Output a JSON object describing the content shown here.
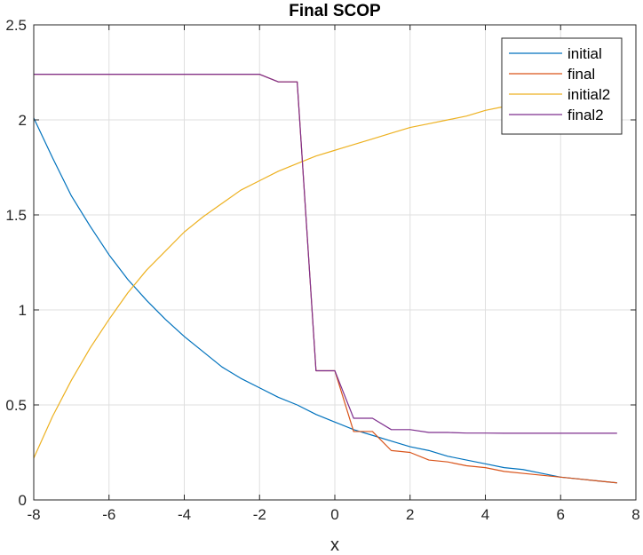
{
  "chart_data": {
    "type": "line",
    "title": "Final SCOP",
    "xlabel": "x",
    "ylabel": "",
    "xlim": [
      -8,
      8
    ],
    "ylim": [
      0,
      2.5
    ],
    "xticks": [
      "-8",
      "-6",
      "-4",
      "-2",
      "0",
      "2",
      "4",
      "6",
      "8"
    ],
    "yticks": [
      "0",
      "0.5",
      "1",
      "1.5",
      "2",
      "2.5"
    ],
    "grid": true,
    "legend_position": "top-right",
    "series": [
      {
        "name": "initial",
        "color": "#0072BD",
        "x": [
          -8,
          -7.5,
          -7,
          -6.5,
          -6,
          -5.5,
          -5,
          -4.5,
          -4,
          -3.5,
          -3,
          -2.5,
          -2,
          -1.5,
          -1,
          -0.5,
          0,
          0.5,
          1,
          1.5,
          2,
          2.5,
          3,
          3.5,
          4,
          4.5,
          5,
          5.5,
          6,
          6.5,
          7,
          7.5
        ],
        "y": [
          2.01,
          1.8,
          1.6,
          1.44,
          1.29,
          1.16,
          1.05,
          0.95,
          0.86,
          0.78,
          0.7,
          0.64,
          0.59,
          0.54,
          0.5,
          0.45,
          0.41,
          0.37,
          0.34,
          0.31,
          0.28,
          0.26,
          0.23,
          0.21,
          0.19,
          0.17,
          0.16,
          0.14,
          0.12,
          0.11,
          0.1,
          0.09
        ]
      },
      {
        "name": "final",
        "color": "#D95319",
        "x": [
          -8,
          -2,
          -1.5,
          -1,
          -0.5,
          0,
          0.5,
          1,
          1.5,
          2,
          2.5,
          3,
          3.5,
          4,
          4.5,
          5,
          5.5,
          6,
          6.5,
          7,
          7.5
        ],
        "y": [
          2.24,
          2.24,
          2.2,
          2.2,
          0.68,
          0.68,
          0.36,
          0.36,
          0.26,
          0.25,
          0.21,
          0.2,
          0.18,
          0.17,
          0.15,
          0.14,
          0.13,
          0.12,
          0.11,
          0.1,
          0.09
        ]
      },
      {
        "name": "initial2",
        "color": "#EDB120",
        "x": [
          -8,
          -7.5,
          -7,
          -6.5,
          -6,
          -5.5,
          -5,
          -4.5,
          -4,
          -3.5,
          -3,
          -2.5,
          -2,
          -1.5,
          -1,
          -0.5,
          0,
          0.5,
          1,
          1.5,
          2,
          2.5,
          3,
          3.5,
          4,
          4.5,
          5,
          5.5,
          6,
          6.5,
          7,
          7.5
        ],
        "y": [
          0.22,
          0.44,
          0.63,
          0.8,
          0.95,
          1.09,
          1.21,
          1.31,
          1.41,
          1.49,
          1.56,
          1.63,
          1.68,
          1.73,
          1.77,
          1.81,
          1.84,
          1.87,
          1.9,
          1.93,
          1.96,
          1.98,
          2.0,
          2.02,
          2.05,
          2.07,
          2.09,
          2.11,
          2.13,
          2.15,
          2.16,
          2.18
        ]
      },
      {
        "name": "final2",
        "color": "#7E2F8E",
        "x": [
          -8,
          -2,
          -1.5,
          -1,
          -0.5,
          0,
          0.5,
          1,
          1.5,
          2,
          2.5,
          3,
          3.5,
          4,
          4.5,
          5,
          5.5,
          6,
          6.5,
          7,
          7.5
        ],
        "y": [
          2.24,
          2.24,
          2.2,
          2.2,
          0.68,
          0.68,
          0.43,
          0.43,
          0.37,
          0.37,
          0.355,
          0.355,
          0.352,
          0.352,
          0.351,
          0.351,
          0.351,
          0.351,
          0.351,
          0.351,
          0.351
        ]
      }
    ]
  }
}
